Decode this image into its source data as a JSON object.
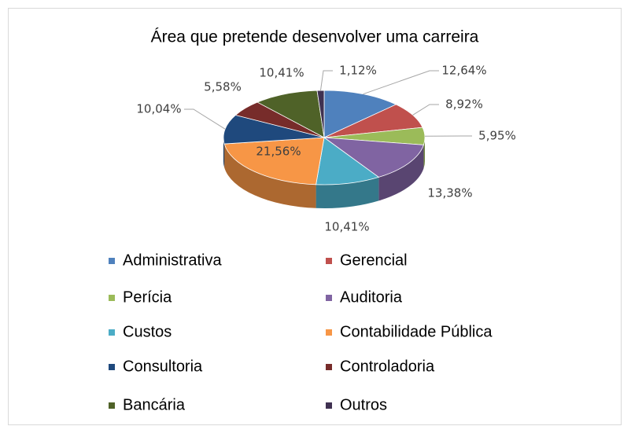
{
  "chart_data": {
    "type": "pie",
    "title": "Área que pretende desenvolver uma carreira",
    "categories": [
      "Administrativa",
      "Gerencial",
      "Perícia",
      "Auditoria",
      "Custos",
      "Contabilidade Pública",
      "Consultoria",
      "Controladoria",
      "Bancária",
      "Outros"
    ],
    "values": [
      12.64,
      8.92,
      5.95,
      13.38,
      10.41,
      21.56,
      10.04,
      5.58,
      10.41,
      1.12
    ],
    "value_labels": [
      "12,64%",
      "8,92%",
      "5,95%",
      "13,38%",
      "10,41%",
      "21,56%",
      "10,04%",
      "5,58%",
      "10,41%",
      "1,12%"
    ],
    "colors": [
      "#4f81bd",
      "#c0504d",
      "#9bbb59",
      "#8064a2",
      "#4bacc6",
      "#f79646",
      "#1f497d",
      "#772c2a",
      "#4f6228",
      "#3f3151"
    ],
    "legend": "bottom"
  }
}
